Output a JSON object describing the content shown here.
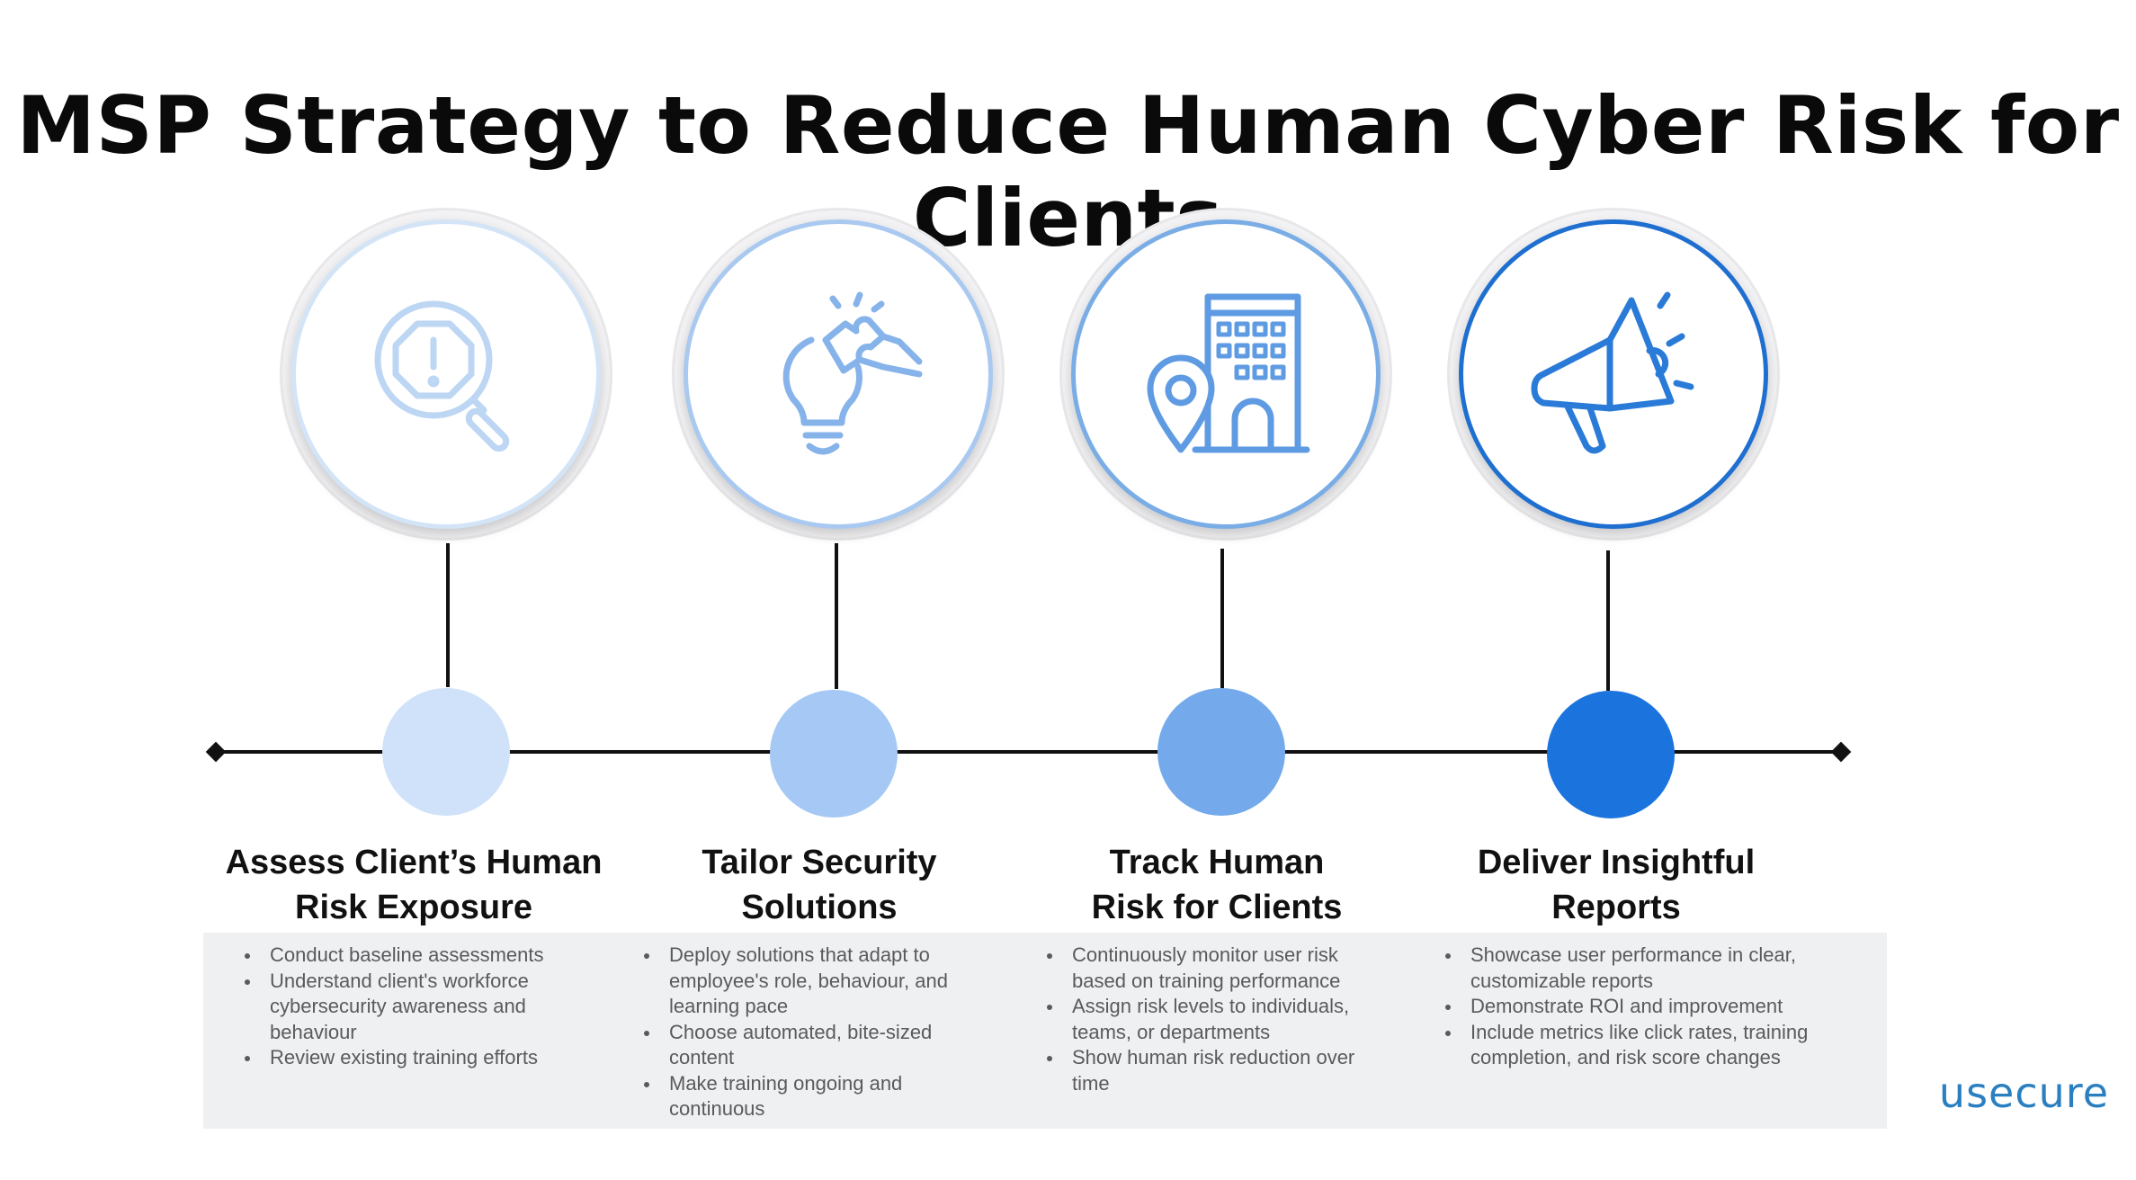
{
  "title": "MSP Strategy to Reduce Human Cyber Risk for Clients",
  "steps": [
    {
      "title_line1": "Assess Client’s Human",
      "title_line2": "Risk Exposure",
      "icon": "magnifier-alert-icon",
      "color": "#cfe2f9",
      "ring": "#cfe2f7",
      "bullets": [
        "Conduct  baseline assessments",
        "Understand client's workforce cybersecurity awareness and behaviour",
        "Review existing training efforts"
      ]
    },
    {
      "title_line1": "Tailor Security",
      "title_line2": "Solutions",
      "icon": "lightbulb-puzzle-icon",
      "color": "#a5c8f4",
      "ring": "#a9c9f0",
      "bullets": [
        "Deploy solutions that adapt to employee's role, behaviour, and learning pace",
        "Choose automated, bite-sized content",
        "Make training ongoing and continuous"
      ]
    },
    {
      "title_line1": "Track Human",
      "title_line2": "Risk for Clients",
      "icon": "building-location-icon",
      "color": "#74aaeb",
      "ring": "#7aade6",
      "bullets": [
        "Continuously monitor user risk based on training performance",
        "Assign risk levels to individuals, teams, or departments",
        "Show human risk reduction over time"
      ]
    },
    {
      "title_line1": "Deliver Insightful",
      "title_line2": "Reports",
      "icon": "megaphone-icon",
      "color": "#1b74de",
      "ring": "#1f6fd0",
      "bullets": [
        "Showcase user performance in clear, customizable reports",
        "Demonstrate ROI and improvement",
        "Include metrics like click rates, training completion, and risk score changes"
      ]
    }
  ],
  "logo": "usecure"
}
